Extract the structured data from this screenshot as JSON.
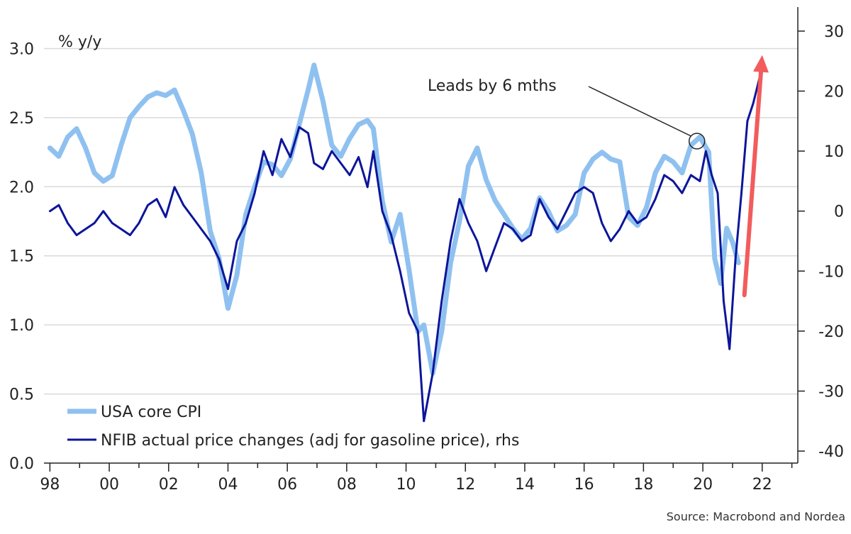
{
  "chart_data": {
    "type": "line",
    "left_axis_label": "% y/y",
    "left_ylim": [
      0.0,
      3.3
    ],
    "right_ylim": [
      -42,
      34
    ],
    "xlim": [
      1997.8,
      2023.2
    ],
    "left_ticks": [
      "0.0",
      "0.5",
      "1.0",
      "1.5",
      "2.0",
      "2.5",
      "3.0"
    ],
    "right_ticks": [
      "-40",
      "-30",
      "-20",
      "-10",
      "0",
      "10",
      "20",
      "30"
    ],
    "x_ticks": [
      {
        "value": 1998,
        "label": "98"
      },
      {
        "value": 2000,
        "label": "00"
      },
      {
        "value": 2002,
        "label": "02"
      },
      {
        "value": 2004,
        "label": "04"
      },
      {
        "value": 2006,
        "label": "06"
      },
      {
        "value": 2008,
        "label": "08"
      },
      {
        "value": 2010,
        "label": "10"
      },
      {
        "value": 2012,
        "label": "12"
      },
      {
        "value": 2014,
        "label": "14"
      },
      {
        "value": 2016,
        "label": "16"
      },
      {
        "value": 2018,
        "label": "18"
      },
      {
        "value": 2020,
        "label": "20"
      },
      {
        "value": 2022,
        "label": "22"
      }
    ],
    "grid": "horizontal",
    "legend_position": "bottom-left",
    "source": "Source: Macrobond and Nordea",
    "series": [
      {
        "name": "USA core CPI",
        "axis": "left",
        "color": "#8fc1f0",
        "points": [
          [
            1998.0,
            2.28
          ],
          [
            1998.3,
            2.22
          ],
          [
            1998.6,
            2.36
          ],
          [
            1998.9,
            2.42
          ],
          [
            1999.2,
            2.28
          ],
          [
            1999.5,
            2.1
          ],
          [
            1999.8,
            2.04
          ],
          [
            2000.1,
            2.08
          ],
          [
            2000.4,
            2.3
          ],
          [
            2000.7,
            2.5
          ],
          [
            2001.0,
            2.58
          ],
          [
            2001.3,
            2.65
          ],
          [
            2001.6,
            2.68
          ],
          [
            2001.9,
            2.66
          ],
          [
            2002.2,
            2.7
          ],
          [
            2002.5,
            2.55
          ],
          [
            2002.8,
            2.38
          ],
          [
            2003.1,
            2.1
          ],
          [
            2003.4,
            1.68
          ],
          [
            2003.7,
            1.48
          ],
          [
            2004.0,
            1.12
          ],
          [
            2004.3,
            1.36
          ],
          [
            2004.6,
            1.8
          ],
          [
            2004.9,
            2.0
          ],
          [
            2005.2,
            2.18
          ],
          [
            2005.5,
            2.16
          ],
          [
            2005.8,
            2.08
          ],
          [
            2006.1,
            2.2
          ],
          [
            2006.4,
            2.45
          ],
          [
            2006.7,
            2.7
          ],
          [
            2006.9,
            2.88
          ],
          [
            2007.2,
            2.62
          ],
          [
            2007.5,
            2.3
          ],
          [
            2007.8,
            2.22
          ],
          [
            2008.1,
            2.35
          ],
          [
            2008.4,
            2.45
          ],
          [
            2008.7,
            2.48
          ],
          [
            2008.9,
            2.42
          ],
          [
            2009.2,
            1.9
          ],
          [
            2009.5,
            1.6
          ],
          [
            2009.8,
            1.8
          ],
          [
            2010.1,
            1.4
          ],
          [
            2010.4,
            0.95
          ],
          [
            2010.6,
            1.0
          ],
          [
            2010.9,
            0.65
          ],
          [
            2011.2,
            0.95
          ],
          [
            2011.5,
            1.45
          ],
          [
            2011.8,
            1.75
          ],
          [
            2012.1,
            2.15
          ],
          [
            2012.4,
            2.28
          ],
          [
            2012.7,
            2.05
          ],
          [
            2013.0,
            1.9
          ],
          [
            2013.3,
            1.8
          ],
          [
            2013.6,
            1.7
          ],
          [
            2013.9,
            1.62
          ],
          [
            2014.2,
            1.7
          ],
          [
            2014.5,
            1.92
          ],
          [
            2014.8,
            1.82
          ],
          [
            2015.1,
            1.68
          ],
          [
            2015.4,
            1.72
          ],
          [
            2015.7,
            1.8
          ],
          [
            2016.0,
            2.1
          ],
          [
            2016.3,
            2.2
          ],
          [
            2016.6,
            2.25
          ],
          [
            2016.9,
            2.2
          ],
          [
            2017.2,
            2.18
          ],
          [
            2017.5,
            1.78
          ],
          [
            2017.8,
            1.72
          ],
          [
            2018.1,
            1.85
          ],
          [
            2018.4,
            2.1
          ],
          [
            2018.7,
            2.22
          ],
          [
            2019.0,
            2.18
          ],
          [
            2019.3,
            2.1
          ],
          [
            2019.6,
            2.3
          ],
          [
            2019.9,
            2.36
          ],
          [
            2020.2,
            2.25
          ],
          [
            2020.4,
            1.48
          ],
          [
            2020.6,
            1.3
          ],
          [
            2020.8,
            1.7
          ],
          [
            2021.0,
            1.6
          ],
          [
            2021.2,
            1.45
          ]
        ]
      },
      {
        "name": "NFIB actual price changes (adj for gasoline price), rhs",
        "axis": "right",
        "color": "#0c159a",
        "points": [
          [
            1998.0,
            0
          ],
          [
            1998.3,
            1
          ],
          [
            1998.6,
            -2
          ],
          [
            1998.9,
            -4
          ],
          [
            1999.2,
            -3
          ],
          [
            1999.5,
            -2
          ],
          [
            1999.8,
            0
          ],
          [
            2000.1,
            -2
          ],
          [
            2000.4,
            -3
          ],
          [
            2000.7,
            -4
          ],
          [
            2001.0,
            -2
          ],
          [
            2001.3,
            1
          ],
          [
            2001.6,
            2
          ],
          [
            2001.9,
            -1
          ],
          [
            2002.2,
            4
          ],
          [
            2002.5,
            1
          ],
          [
            2002.8,
            -1
          ],
          [
            2003.1,
            -3
          ],
          [
            2003.4,
            -5
          ],
          [
            2003.7,
            -8
          ],
          [
            2004.0,
            -13
          ],
          [
            2004.3,
            -5
          ],
          [
            2004.6,
            -2
          ],
          [
            2004.9,
            3
          ],
          [
            2005.2,
            10
          ],
          [
            2005.5,
            6
          ],
          [
            2005.8,
            12
          ],
          [
            2006.1,
            9
          ],
          [
            2006.4,
            14
          ],
          [
            2006.7,
            13
          ],
          [
            2006.9,
            8
          ],
          [
            2007.2,
            7
          ],
          [
            2007.5,
            10
          ],
          [
            2007.8,
            8
          ],
          [
            2008.1,
            6
          ],
          [
            2008.4,
            9
          ],
          [
            2008.7,
            4
          ],
          [
            2008.9,
            10
          ],
          [
            2009.2,
            0
          ],
          [
            2009.5,
            -4
          ],
          [
            2009.8,
            -10
          ],
          [
            2010.1,
            -17
          ],
          [
            2010.4,
            -20
          ],
          [
            2010.6,
            -35
          ],
          [
            2010.9,
            -27
          ],
          [
            2011.2,
            -15
          ],
          [
            2011.5,
            -5
          ],
          [
            2011.8,
            2
          ],
          [
            2012.1,
            -2
          ],
          [
            2012.4,
            -5
          ],
          [
            2012.7,
            -10
          ],
          [
            2013.0,
            -6
          ],
          [
            2013.3,
            -2
          ],
          [
            2013.6,
            -3
          ],
          [
            2013.9,
            -5
          ],
          [
            2014.2,
            -4
          ],
          [
            2014.5,
            2
          ],
          [
            2014.8,
            -1
          ],
          [
            2015.1,
            -3
          ],
          [
            2015.4,
            0
          ],
          [
            2015.7,
            3
          ],
          [
            2016.0,
            4
          ],
          [
            2016.3,
            3
          ],
          [
            2016.6,
            -2
          ],
          [
            2016.9,
            -5
          ],
          [
            2017.2,
            -3
          ],
          [
            2017.5,
            0
          ],
          [
            2017.8,
            -2
          ],
          [
            2018.1,
            -1
          ],
          [
            2018.4,
            2
          ],
          [
            2018.7,
            6
          ],
          [
            2019.0,
            5
          ],
          [
            2019.3,
            3
          ],
          [
            2019.6,
            6
          ],
          [
            2019.9,
            5
          ],
          [
            2020.1,
            10
          ],
          [
            2020.3,
            6
          ],
          [
            2020.5,
            3
          ],
          [
            2020.7,
            -15
          ],
          [
            2020.9,
            -23
          ],
          [
            2021.1,
            -8
          ],
          [
            2021.3,
            3
          ],
          [
            2021.5,
            15
          ],
          [
            2021.7,
            18
          ],
          [
            2021.9,
            22
          ]
        ]
      }
    ],
    "annotations": {
      "leads_text": "Leads by 6 mths",
      "circle_at": [
        2019.8,
        2.33
      ],
      "arrow": {
        "from": [
          2021.4,
          -14
        ],
        "to": [
          2022.0,
          26
        ],
        "color": "#f25c5c"
      }
    }
  }
}
